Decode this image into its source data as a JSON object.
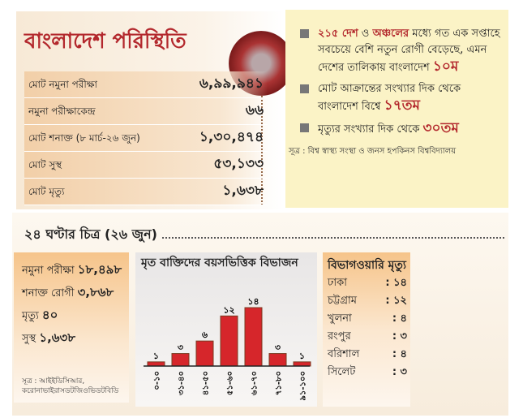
{
  "title": "বাংলাদেশ পরিস্থিতি",
  "summary": [
    {
      "label": "মোট নমুনা পরীক্ষা",
      "value": "৬,৯৯,৯৪১"
    },
    {
      "label": "নমুনা পরীক্ষাকেন্দ্র",
      "value": "৬৬"
    },
    {
      "label": "মোট শনাক্ত (৮ মার্চ-২৬ জুন)",
      "value": "১,৩০,৪৭৪"
    },
    {
      "label": "মোট সুস্থ",
      "value": "৫৩,১৩৩"
    },
    {
      "label": "মোট মৃত্যু",
      "value": "১,৬৩৮"
    }
  ],
  "facts": {
    "f1_a": "২১৫ দেশ",
    "f1_b": " ও ",
    "f1_c": "অঞ্চলের",
    "f1_d": " মধ্যে গত এক সপ্তাহে সবচেয়ে বেশি নতুন রোগী বেড়েছে, এমন দেশের তালিকায় বাংলাদেশ ",
    "f1_rank": "১০ম",
    "f2": "মোট আক্রান্তের সংখ্যার দিক থেকে বাংলাদেশ বিশ্বে ",
    "f2_rank": "১৭তম",
    "f3": "মৃত্যুর সংখ্যার দিক থেকে ",
    "f3_rank": "৩০তম",
    "source": "সূত্র : বিশ্ব স্বাস্থ্য সংস্থা ও জনস হপকিনস বিশ্ববিদ্যালয়"
  },
  "day": {
    "heading": "২৪ ঘণ্টার চিত্র (২৬ জুন)",
    "stats": [
      {
        "label": "নমুনা পরীক্ষা",
        "value": "১৮,৪৯৮"
      },
      {
        "label": "শনাক্ত রোগী",
        "value": "৩,৮৬৮"
      },
      {
        "label": "মৃত্যু",
        "value": "৪০"
      },
      {
        "label": "সুস্থ",
        "value": "১,৬৩৮"
      }
    ],
    "source": "সূত্র : আইইডিসিআর, করোনাভাইরাসডটজিওভিডটবিডি"
  },
  "chart_data": {
    "type": "bar",
    "title": "মৃত বাক্তিদের বয়সভিত্তিক বিভাজন",
    "categories": [
      "০-১০",
      "৩১-৪০",
      "৪১-৫০",
      "৫১-৬০",
      "৬১-৭০",
      "৭১-৮০",
      "৯১-১০০"
    ],
    "values": [
      1,
      3,
      6,
      12,
      14,
      3,
      1
    ],
    "value_labels": [
      "১",
      "৩",
      "৬",
      "১২",
      "১৪",
      "৩",
      "১"
    ],
    "ylim": [
      0,
      14
    ],
    "bar_color": "#d6262b",
    "grid": false
  },
  "division": {
    "title": "বিভাগওয়ারি মৃত্যু",
    "rows": [
      {
        "name": "ঢাকা",
        "value": ": ১৪"
      },
      {
        "name": "চট্টগ্রাম",
        "value": ": ১২"
      },
      {
        "name": "খুলনা",
        "value": ": ৪"
      },
      {
        "name": "রংপুর",
        "value": ": ৩"
      },
      {
        "name": "বরিশাল",
        "value": ": ৪"
      },
      {
        "name": "সিলেট",
        "value": ": ৩"
      }
    ]
  }
}
